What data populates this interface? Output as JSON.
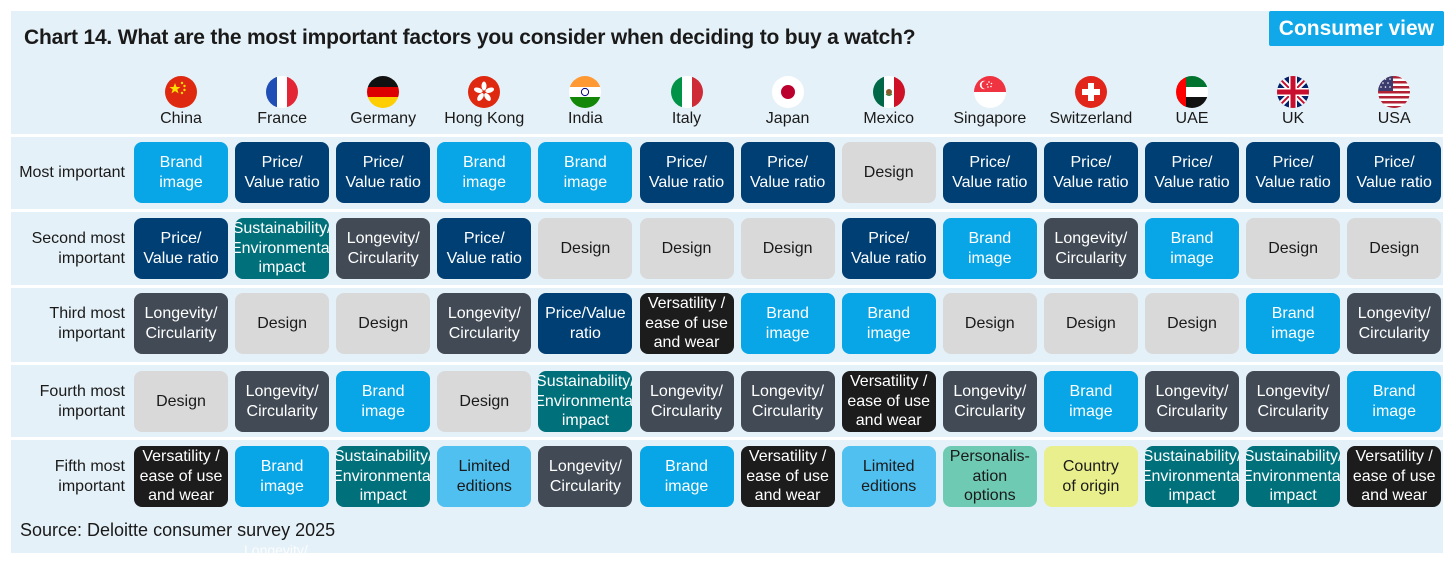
{
  "header": {
    "title": "Chart 14. What are the most important factors you consider when deciding to buy a watch?",
    "badge": "Consumer view"
  },
  "footer": {
    "source": "Source: Deloitte consumer survey 2025",
    "ghost_text": "Longevity/"
  },
  "colors": {
    "panel": "#e5f1f8",
    "badge": "#10a8e8",
    "price": "#003f74",
    "brand": "#08a6e6",
    "design": "#d9d9d9",
    "longevity": "#414a55",
    "sustainability": "#00707a",
    "versatility": "#1c1c1c",
    "limited": "#4fc0f0",
    "personalisation": "#6fcab4",
    "origin": "#e9ef8c"
  },
  "chart_data": {
    "type": "table",
    "title": "Chart 14. What are the most important factors you consider when deciding to buy a watch?",
    "columns": [
      {
        "name": "China",
        "flag": "china-flag-icon"
      },
      {
        "name": "France",
        "flag": "france-flag-icon"
      },
      {
        "name": "Germany",
        "flag": "germany-flag-icon"
      },
      {
        "name": "Hong Kong",
        "flag": "hong-kong-flag-icon"
      },
      {
        "name": "India",
        "flag": "india-flag-icon"
      },
      {
        "name": "Italy",
        "flag": "italy-flag-icon"
      },
      {
        "name": "Japan",
        "flag": "japan-flag-icon"
      },
      {
        "name": "Mexico",
        "flag": "mexico-flag-icon"
      },
      {
        "name": "Singapore",
        "flag": "singapore-flag-icon"
      },
      {
        "name": "Switzerland",
        "flag": "switzerland-flag-icon"
      },
      {
        "name": "UAE",
        "flag": "uae-flag-icon"
      },
      {
        "name": "UK",
        "flag": "uk-flag-icon"
      },
      {
        "name": "USA",
        "flag": "usa-flag-icon"
      }
    ],
    "factors": {
      "price": {
        "lines": [
          "Price/",
          "Value ratio"
        ],
        "color": "#003f74",
        "text": "#ffffff"
      },
      "brand": {
        "lines": [
          "Brand",
          "image"
        ],
        "color": "#08a6e6",
        "text": "#ffffff"
      },
      "design": {
        "lines": [
          "Design"
        ],
        "color": "#d9d9d9",
        "text": "#1a1a1a"
      },
      "longevity": {
        "lines": [
          "Longevity/",
          "Circularity"
        ],
        "color": "#414a55",
        "text": "#ffffff"
      },
      "sustainability": {
        "lines": [
          "Sustainability/",
          "Environmental",
          "impact"
        ],
        "color": "#00707a",
        "text": "#ffffff"
      },
      "versatility": {
        "lines": [
          "Versatility /",
          "ease of use",
          "and wear"
        ],
        "color": "#1c1c1c",
        "text": "#ffffff"
      },
      "limited": {
        "lines": [
          "Limited",
          "editions"
        ],
        "color": "#4fc0f0",
        "text": "#1a1a1a"
      },
      "personalisation": {
        "lines": [
          "Personalis-",
          "ation",
          "options"
        ],
        "color": "#6fcab4",
        "text": "#1a1a1a"
      },
      "origin": {
        "lines": [
          "Country",
          "of origin"
        ],
        "color": "#e9ef8c",
        "text": "#1a1a1a"
      }
    },
    "rows": [
      {
        "label": [
          "Most important"
        ],
        "cells": [
          "brand",
          "price",
          "price",
          "brand",
          "brand",
          "price",
          "price",
          "design",
          "price",
          "price",
          "price",
          "price",
          "price"
        ]
      },
      {
        "label": [
          "Second most",
          "important"
        ],
        "cells": [
          "price",
          "sustainability",
          "longevity",
          "price",
          "design",
          "design",
          "design",
          "price",
          "brand",
          "longevity",
          "brand",
          "design",
          "design"
        ]
      },
      {
        "label": [
          "Third most",
          "important"
        ],
        "cells": [
          "longevity",
          "design",
          "design",
          "longevity",
          "price_alt",
          "versatility",
          "brand",
          "brand",
          "design",
          "design",
          "design",
          "brand",
          "longevity"
        ]
      },
      {
        "label": [
          "Fourth most",
          "important"
        ],
        "cells": [
          "design",
          "longevity",
          "brand",
          "design",
          "sustainability",
          "longevity",
          "longevity",
          "versatility",
          "longevity",
          "brand",
          "longevity",
          "longevity",
          "brand"
        ]
      },
      {
        "label": [
          "Fifth most",
          "important"
        ],
        "cells": [
          "versatility",
          "brand",
          "sustainability",
          "limited",
          "longevity",
          "brand",
          "versatility",
          "limited",
          "personalisation",
          "origin",
          "sustainability",
          "sustainability",
          "versatility"
        ]
      }
    ],
    "alt_factors": {
      "price_alt": {
        "lines": [
          "Price/Value",
          "ratio"
        ],
        "color": "#003f74",
        "text": "#ffffff"
      }
    }
  }
}
